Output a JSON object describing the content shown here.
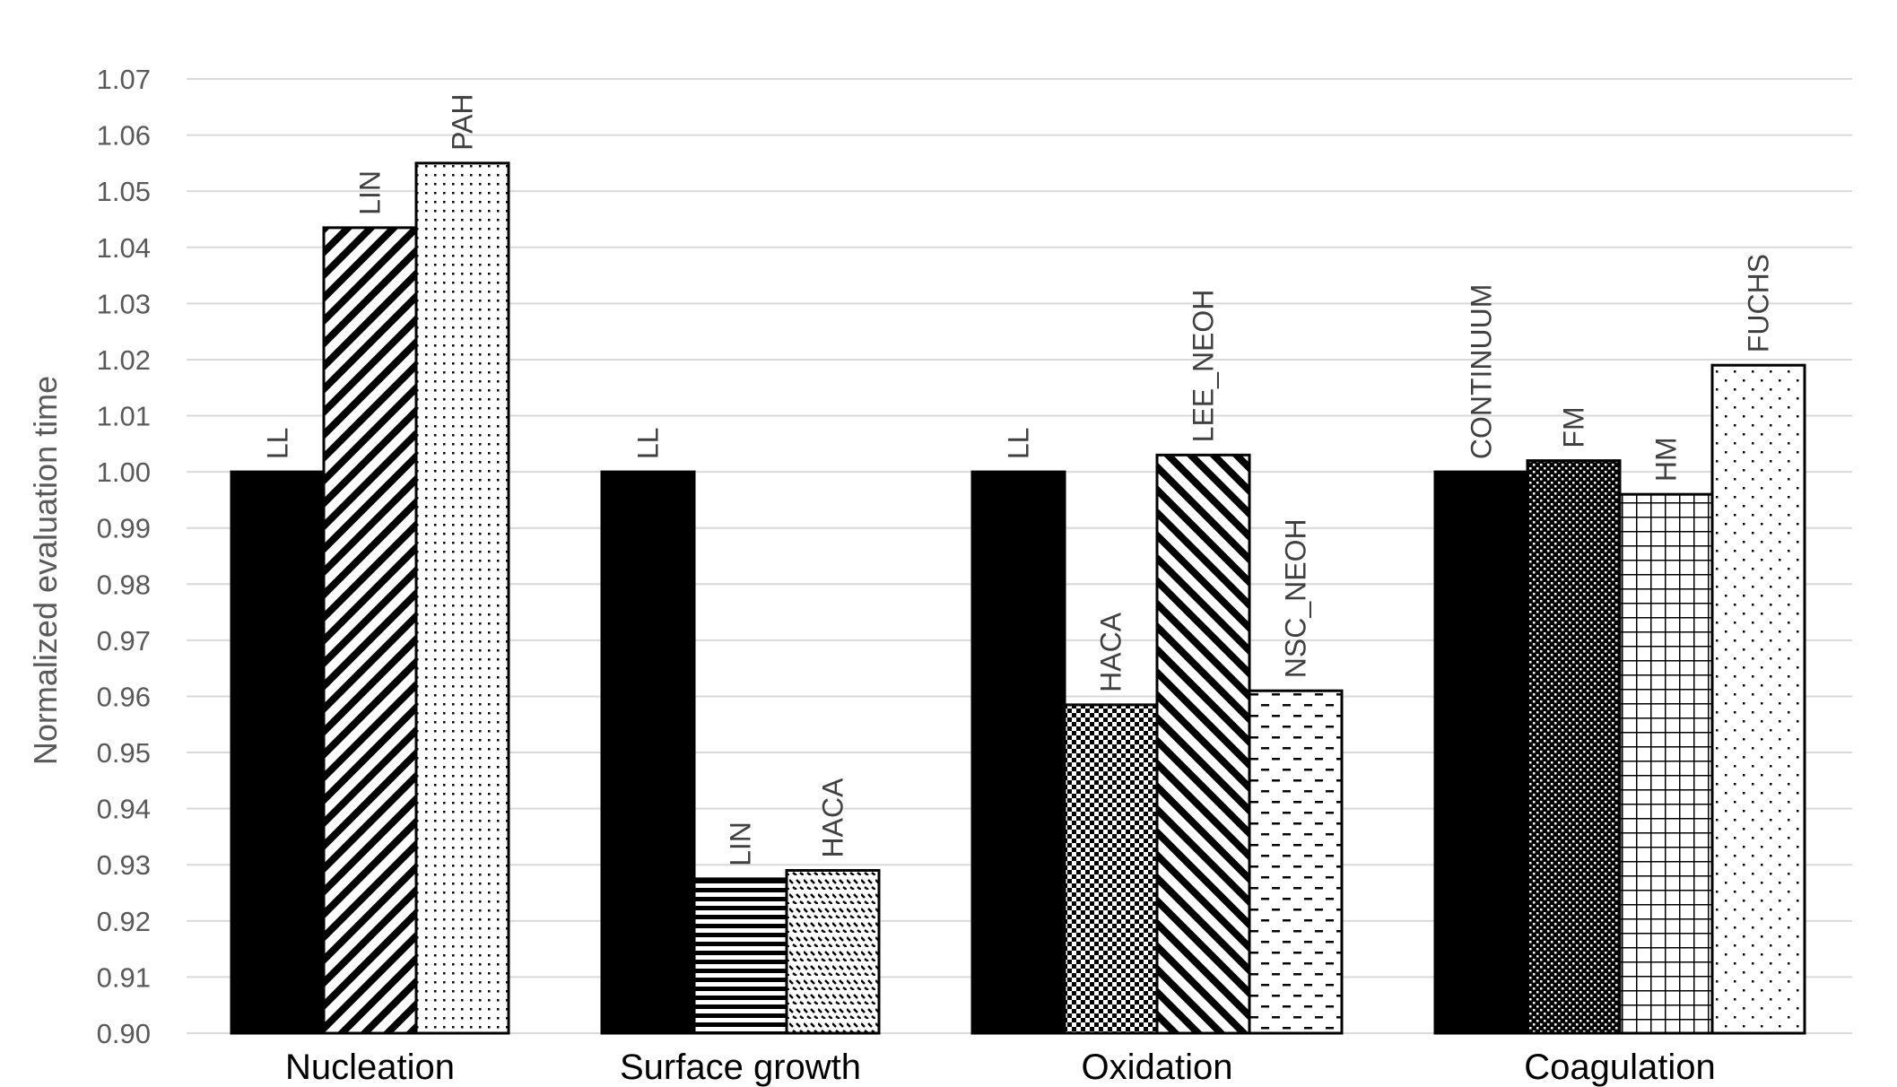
{
  "chart_data": {
    "type": "bar",
    "title": "",
    "xlabel": "",
    "ylabel": "Normalized evaluation time",
    "ylim": [
      0.9,
      1.07
    ],
    "yticks": [
      "0.90",
      "0.91",
      "0.92",
      "0.93",
      "0.94",
      "0.95",
      "0.96",
      "0.97",
      "0.98",
      "0.99",
      "1.00",
      "1.01",
      "1.02",
      "1.03",
      "1.04",
      "1.05",
      "1.06",
      "1.07"
    ],
    "grid": true,
    "legend": "none",
    "groups": [
      {
        "category": "Nucleation",
        "bars": [
          {
            "label": "LL",
            "value": 1.0,
            "pattern": "solid"
          },
          {
            "label": "LIN",
            "value": 1.0435,
            "pattern": "diag-right"
          },
          {
            "label": "PAH",
            "value": 1.055,
            "pattern": "dots"
          }
        ]
      },
      {
        "category": "Surface growth",
        "bars": [
          {
            "label": "LL",
            "value": 1.0,
            "pattern": "solid"
          },
          {
            "label": "LIN",
            "value": 0.9275,
            "pattern": "horizontal"
          },
          {
            "label": "HACA",
            "value": 0.929,
            "pattern": "wave"
          }
        ]
      },
      {
        "category": "Oxidation",
        "bars": [
          {
            "label": "LL",
            "value": 1.0,
            "pattern": "solid"
          },
          {
            "label": "HACA",
            "value": 0.9585,
            "pattern": "checker"
          },
          {
            "label": "LEE_NEOH",
            "value": 1.003,
            "pattern": "diag-left"
          },
          {
            "label": "NSC_NEOH",
            "value": 0.961,
            "pattern": "dashes"
          }
        ]
      },
      {
        "category": "Coagulation",
        "bars": [
          {
            "label": "CONTINUUM",
            "value": 1.0,
            "pattern": "solid"
          },
          {
            "label": "FM",
            "value": 1.002,
            "pattern": "dense-checker"
          },
          {
            "label": "HM",
            "value": 0.996,
            "pattern": "grid"
          },
          {
            "label": "FUCHS",
            "value": 1.019,
            "pattern": "sparse-dots"
          }
        ]
      }
    ]
  }
}
